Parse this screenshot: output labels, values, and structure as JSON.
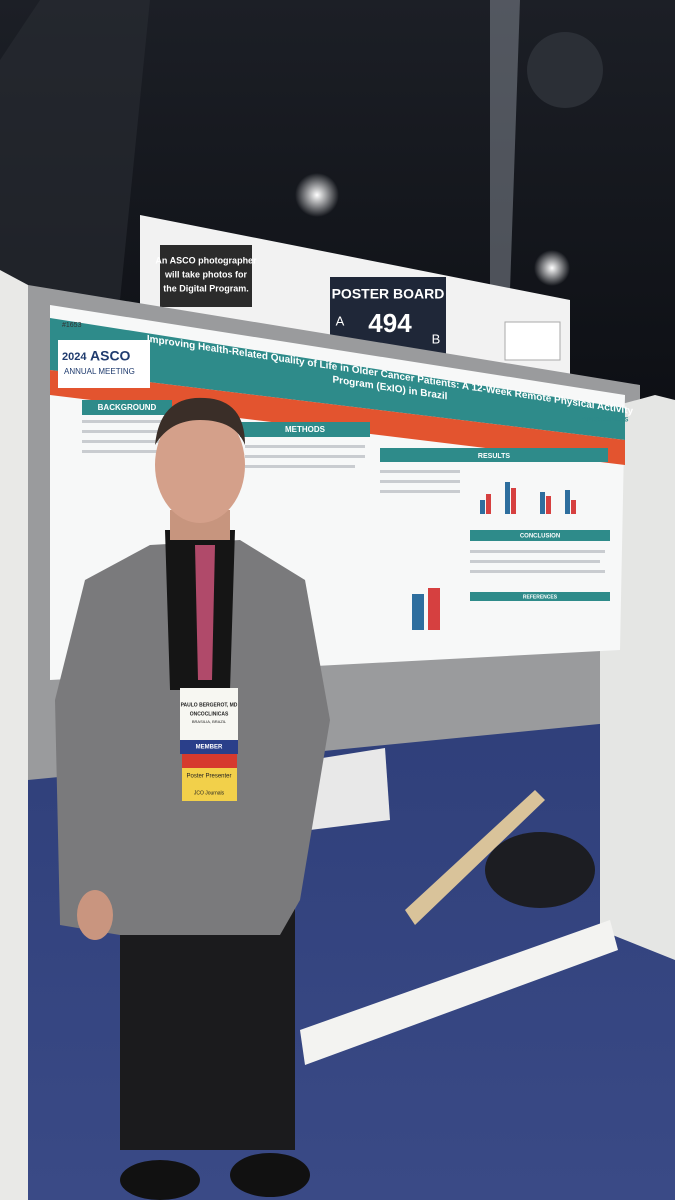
{
  "sign": {
    "photo_notice_lines": [
      "An ASCO photographer",
      "will take photos for",
      "the Digital Program."
    ],
    "board_label": "POSTER BOARD",
    "side_a": "A",
    "number": "494",
    "side_b": "B"
  },
  "poster": {
    "id": "#1653",
    "meeting_year": "2024",
    "meeting_name": "ASCO",
    "meeting_sub": "ANNUAL MEETING",
    "title_lines": [
      "Improving Health-Related Quality of Life in Older Cancer Patients: A 12-Week Remote Physical Activity",
      "Program (ExIO) in Brazil"
    ],
    "sections": [
      "BACKGROUND",
      "METHODS",
      "RESULTS",
      "CONCLUSION",
      "REFERENCES"
    ],
    "logo": "ONCOCLINICAS"
  },
  "badge": {
    "name": "PAULO BERGEROT, MD",
    "org": "ONCOCLINICAS",
    "location": "BRASILIA, BRAZIL",
    "member": "MEMBER",
    "ribbon": "Poster Presenter",
    "journal": "JCO Journals"
  }
}
